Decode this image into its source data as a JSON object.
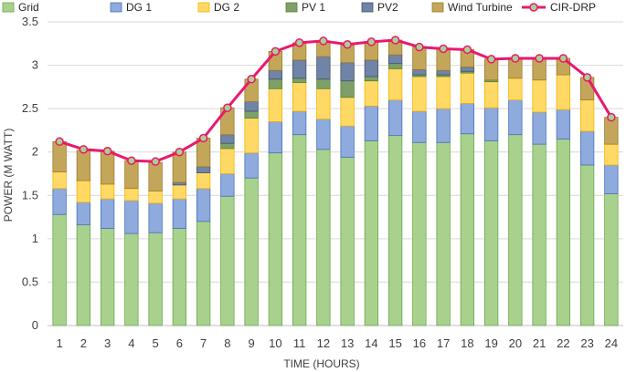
{
  "chart_data": {
    "type": "bar",
    "stacked": true,
    "title": "",
    "xlabel": "TIME (HOURS)",
    "ylabel": "POWER (M WATT)",
    "ylim": [
      0,
      3.5
    ],
    "yticks": [
      "0",
      "0.5",
      "1",
      "1.5",
      "2",
      "2.5",
      "3",
      "3.5"
    ],
    "grid": true,
    "legend_position": "top",
    "categories": [
      "1",
      "2",
      "3",
      "4",
      "5",
      "6",
      "7",
      "8",
      "9",
      "10",
      "11",
      "12",
      "13",
      "14",
      "15",
      "16",
      "17",
      "18",
      "19",
      "20",
      "21",
      "22",
      "23",
      "24"
    ],
    "series": [
      {
        "name": "Grid",
        "color": "#a9d18e",
        "edge": "#6aa64b",
        "values": [
          1.28,
          1.16,
          1.12,
          1.06,
          1.07,
          1.12,
          1.2,
          1.49,
          1.7,
          1.99,
          2.2,
          2.03,
          1.94,
          2.13,
          2.19,
          2.11,
          2.11,
          2.21,
          2.13,
          2.2,
          2.09,
          2.15,
          1.85,
          1.52
        ]
      },
      {
        "name": "DG 1",
        "color": "#8faadc",
        "edge": "#4472c4",
        "values": [
          0.3,
          0.26,
          0.34,
          0.38,
          0.34,
          0.34,
          0.38,
          0.26,
          0.29,
          0.36,
          0.27,
          0.35,
          0.36,
          0.4,
          0.41,
          0.36,
          0.39,
          0.35,
          0.38,
          0.4,
          0.37,
          0.34,
          0.39,
          0.33
        ]
      },
      {
        "name": "DG 2",
        "color": "#ffd966",
        "edge": "#f4b400",
        "values": [
          0.19,
          0.25,
          0.17,
          0.14,
          0.14,
          0.16,
          0.18,
          0.29,
          0.4,
          0.38,
          0.33,
          0.35,
          0.33,
          0.29,
          0.36,
          0.4,
          0.37,
          0.35,
          0.3,
          0.25,
          0.37,
          0.4,
          0.36,
          0.24
        ]
      },
      {
        "name": "PV 1",
        "color": "#7f9f6a",
        "edge": "#548235",
        "values": [
          0,
          0,
          0,
          0,
          0,
          0,
          0,
          0.06,
          0.08,
          0.11,
          0.05,
          0.11,
          0.19,
          0.05,
          0.06,
          0.02,
          0.02,
          0.02,
          0.02,
          0,
          0,
          0,
          0,
          0
        ]
      },
      {
        "name": "PV2",
        "color": "#7084a8",
        "edge": "#44546a",
        "values": [
          0,
          0,
          0,
          0,
          0,
          0.03,
          0.07,
          0.1,
          0.11,
          0.1,
          0.21,
          0.26,
          0.21,
          0.19,
          0.1,
          0.06,
          0.05,
          0.05,
          0,
          0,
          0,
          0,
          0,
          0
        ]
      },
      {
        "name": "Wind Turbine",
        "color": "#c4a65a",
        "edge": "#9c7b2c",
        "values": [
          0.35,
          0.35,
          0.38,
          0.32,
          0.33,
          0.35,
          0.33,
          0.31,
          0.26,
          0.22,
          0.2,
          0.18,
          0.2,
          0.21,
          0.17,
          0.26,
          0.25,
          0.2,
          0.24,
          0.23,
          0.25,
          0.19,
          0.26,
          0.31
        ]
      }
    ],
    "line": {
      "name": "CIR-DRP",
      "color": "#e8196e",
      "marker_fill": "#a9d18e",
      "values": [
        2.12,
        2.03,
        2.01,
        1.9,
        1.89,
        2.0,
        2.16,
        2.51,
        2.84,
        3.16,
        3.26,
        3.28,
        3.24,
        3.27,
        3.29,
        3.21,
        3.19,
        3.18,
        3.07,
        3.08,
        3.08,
        3.08,
        2.86,
        2.4
      ]
    }
  }
}
